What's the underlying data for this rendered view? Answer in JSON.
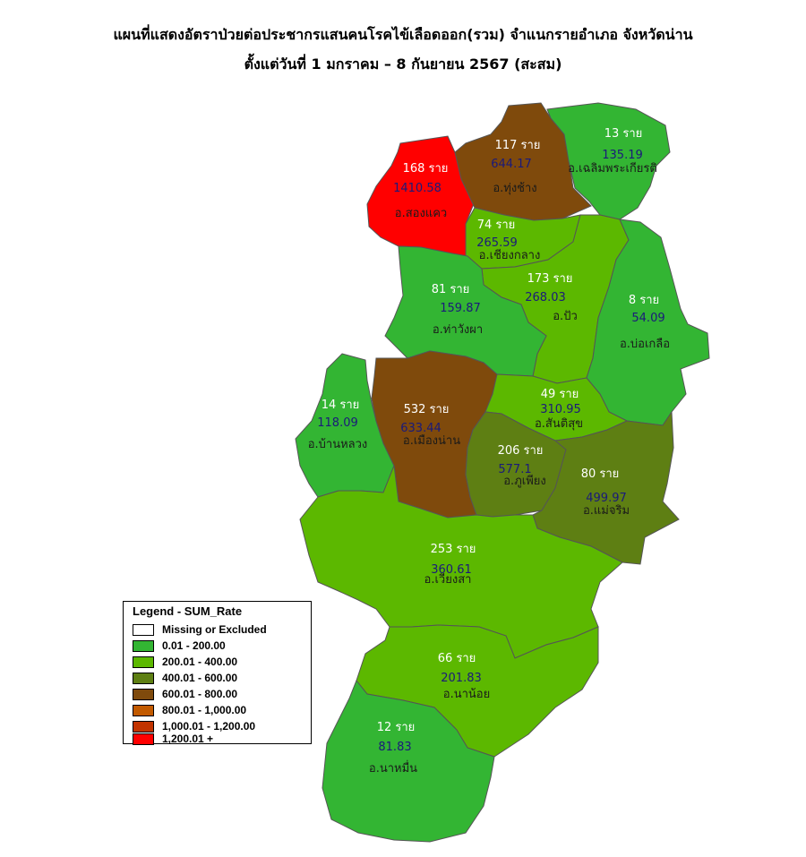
{
  "title": {
    "line1": "แผนที่แสดงอัตราป่วยต่อประชากรแสนคนโรคไข้เลือดออก(รวม) จำแนกรายอำเภอ จังหวัดน่าน",
    "line2": "ตั้งแต่วันที่  1 มกราคม – 8 กันยายน 2567 (สะสม)"
  },
  "legend": {
    "title": "Legend - SUM_Rate",
    "items": [
      {
        "label": "Missing or Excluded",
        "color": "#ffffff"
      },
      {
        "label": "0.01 - 200.00",
        "color": "#33b533"
      },
      {
        "label": "200.01 - 400.00",
        "color": "#5cb800"
      },
      {
        "label": "400.01 - 600.00",
        "color": "#5e7f13"
      },
      {
        "label": "600.01 - 800.00",
        "color": "#7f4a0c"
      },
      {
        "label": "800.01 - 1,000.00",
        "color": "#c25a00"
      },
      {
        "label": "1,000.01 - 1,200.00",
        "color": "#c23300"
      },
      {
        "label": "1,200.01 +",
        "color": "#ff0000"
      }
    ]
  },
  "districts": [
    {
      "id": "songkhwae",
      "cases": "168 ราย",
      "rate": "1410.58",
      "name": "อ.สองแคว",
      "color": "#ff0000"
    },
    {
      "id": "thungchang",
      "cases": "117 ราย",
      "rate": "644.17",
      "name": "อ.ทุ่งช้าง",
      "color": "#7f4a0c"
    },
    {
      "id": "chaloem",
      "cases": "13 ราย",
      "rate": "135.19",
      "name": "อ.เฉลิมพระเกียรติ",
      "color": "#33b533"
    },
    {
      "id": "chiangklang",
      "cases": "74 ราย",
      "rate": "265.59",
      "name": "อ.เชียงกลาง",
      "color": "#5cb800"
    },
    {
      "id": "pua",
      "cases": "173 ราย",
      "rate": "268.03",
      "name": "อ.ปัว",
      "color": "#5cb800"
    },
    {
      "id": "thawangpha",
      "cases": "81 ราย",
      "rate": "159.87",
      "name": "อ.ท่าวังผา",
      "color": "#33b533"
    },
    {
      "id": "bokluea",
      "cases": "8 ราย",
      "rate": "54.09",
      "name": "อ.บ่อเกลือ",
      "color": "#33b533"
    },
    {
      "id": "banluang",
      "cases": "14 ราย",
      "rate": "118.09",
      "name": "อ.บ้านหลวง",
      "color": "#33b533"
    },
    {
      "id": "mueang",
      "cases": "532 ราย",
      "rate": "633.44",
      "name": "อ.เมืองน่าน",
      "color": "#7f4a0c"
    },
    {
      "id": "santisuk",
      "cases": "49 ราย",
      "rate": "310.95",
      "name": "อ.สันติสุข",
      "color": "#5cb800"
    },
    {
      "id": "phuphiang",
      "cases": "206 ราย",
      "rate": "577.1",
      "name": "อ.ภูเพียง",
      "color": "#5e7f13"
    },
    {
      "id": "maecharim",
      "cases": "80 ราย",
      "rate": "499.97",
      "name": "อ.แม่จริม",
      "color": "#5e7f13"
    },
    {
      "id": "wiangsa",
      "cases": "253 ราย",
      "rate": "360.61",
      "name": "อ.เวียงสา",
      "color": "#5cb800"
    },
    {
      "id": "nanoi",
      "cases": "66 ราย",
      "rate": "201.83",
      "name": "อ.นาน้อย",
      "color": "#5cb800"
    },
    {
      "id": "namuen",
      "cases": "12 ราย",
      "rate": "81.83",
      "name": "อ.นาหมื่น",
      "color": "#33b533"
    }
  ]
}
